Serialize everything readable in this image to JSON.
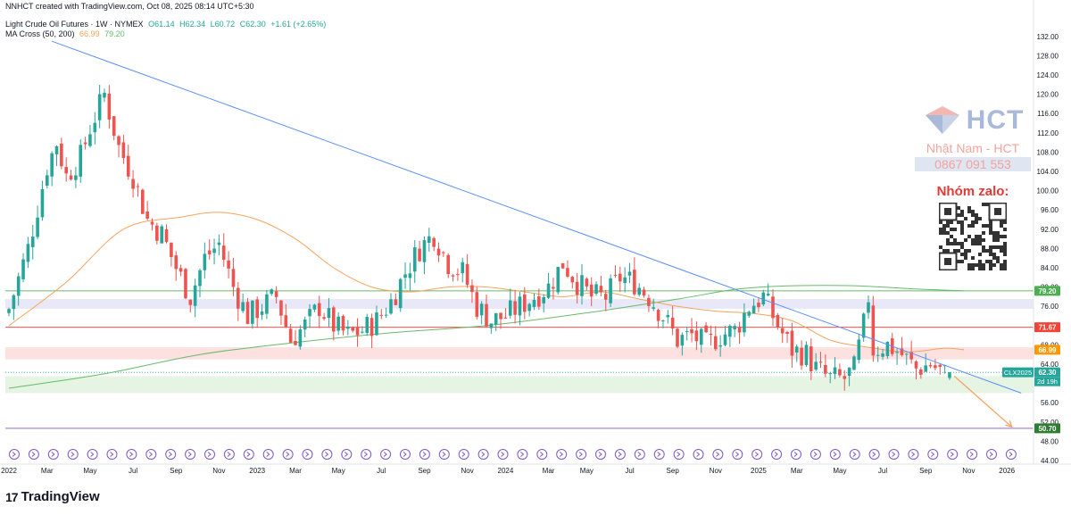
{
  "header": {
    "created": "NNHCT created with TradingView.com, Oct 08, 2025 08:14 UTC+5:30",
    "symbol": "Light Crude Oil Futures · 1W · NYMEX",
    "o": "O61.14",
    "h": "H62.34",
    "l": "L60.72",
    "c": "C62.30",
    "chg": "+1.61 (+2.65%)",
    "ma_label": "MA Cross (50, 200)",
    "ma50": "66.99",
    "ma200": "79.20"
  },
  "watermark": {
    "brand": "HCT",
    "name": "Nhật Nam - HCT",
    "phone": "0867 091 553",
    "group": "Nhóm zalo:"
  },
  "logo": {
    "text": "TradingView"
  },
  "colors": {
    "up": "#26a69a",
    "down": "#ef5350",
    "trend": "#5b8ff9",
    "ma50": "#f7a35c",
    "ma200": "#66bb6a",
    "arrow": "#f7a35c",
    "event": "#7e57c2"
  },
  "chart_data": {
    "type": "candlestick",
    "title": "Light Crude Oil Futures · 1W · NYMEX",
    "ylim": [
      44,
      134
    ],
    "yticks": [
      "132.00",
      "128.00",
      "124.00",
      "120.00",
      "116.00",
      "112.00",
      "108.00",
      "104.00",
      "100.00",
      "96.00",
      "92.00",
      "88.00",
      "84.00",
      "80.00",
      "76.00",
      "72.00",
      "68.00",
      "64.00",
      "60.00",
      "56.00",
      "52.00",
      "48.00",
      "44.00"
    ],
    "xlabels": [
      {
        "label": "2022",
        "t": 0
      },
      {
        "label": "Mar",
        "t": 8
      },
      {
        "label": "May",
        "t": 17
      },
      {
        "label": "Jul",
        "t": 26
      },
      {
        "label": "Sep",
        "t": 35
      },
      {
        "label": "Nov",
        "t": 44
      },
      {
        "label": "2023",
        "t": 52
      },
      {
        "label": "Mar",
        "t": 60
      },
      {
        "label": "May",
        "t": 69
      },
      {
        "label": "Jul",
        "t": 78
      },
      {
        "label": "Sep",
        "t": 87
      },
      {
        "label": "Nov",
        "t": 96
      },
      {
        "label": "2024",
        "t": 104
      },
      {
        "label": "Mar",
        "t": 113
      },
      {
        "label": "May",
        "t": 121
      },
      {
        "label": "Jul",
        "t": 130
      },
      {
        "label": "Sep",
        "t": 139
      },
      {
        "label": "Nov",
        "t": 148
      },
      {
        "label": "2025",
        "t": 157
      },
      {
        "label": "Mar",
        "t": 165
      },
      {
        "label": "May",
        "t": 174
      },
      {
        "label": "Jul",
        "t": 183
      },
      {
        "label": "Sep",
        "t": 192
      },
      {
        "label": "Nov",
        "t": 201
      },
      {
        "label": "2026",
        "t": 209
      }
    ],
    "anchors": [
      [
        0,
        75.5
      ],
      [
        4,
        88
      ],
      [
        8,
        105
      ],
      [
        10,
        110
      ],
      [
        12,
        103
      ],
      [
        15,
        107
      ],
      [
        17,
        113
      ],
      [
        20,
        120
      ],
      [
        23,
        109
      ],
      [
        26,
        103
      ],
      [
        29,
        94
      ],
      [
        32,
        91
      ],
      [
        35,
        84
      ],
      [
        38,
        78
      ],
      [
        41,
        86
      ],
      [
        44,
        89
      ],
      [
        47,
        80
      ],
      [
        50,
        74
      ],
      [
        53,
        76
      ],
      [
        56,
        78
      ],
      [
        59,
        69
      ],
      [
        62,
        72
      ],
      [
        65,
        76
      ],
      [
        68,
        72
      ],
      [
        71,
        70
      ],
      [
        74,
        71
      ],
      [
        77,
        73
      ],
      [
        80,
        77
      ],
      [
        83,
        83
      ],
      [
        86,
        88
      ],
      [
        89,
        91
      ],
      [
        92,
        85
      ],
      [
        95,
        83
      ],
      [
        98,
        76
      ],
      [
        101,
        73
      ],
      [
        104,
        74
      ],
      [
        107,
        76
      ],
      [
        110,
        78
      ],
      [
        113,
        80
      ],
      [
        116,
        85
      ],
      [
        119,
        81
      ],
      [
        122,
        78
      ],
      [
        125,
        78
      ],
      [
        128,
        82
      ],
      [
        131,
        81
      ],
      [
        134,
        78
      ],
      [
        137,
        74
      ],
      [
        140,
        69
      ],
      [
        143,
        70
      ],
      [
        146,
        68
      ],
      [
        149,
        70
      ],
      [
        152,
        71
      ],
      [
        155,
        76
      ],
      [
        158,
        78
      ],
      [
        161,
        72
      ],
      [
        164,
        67
      ],
      [
        167,
        66
      ],
      [
        169,
        63
      ],
      [
        172,
        61
      ],
      [
        175,
        61
      ],
      [
        177,
        63
      ],
      [
        179,
        72
      ],
      [
        180,
        78
      ],
      [
        181,
        67
      ],
      [
        184,
        68
      ],
      [
        187,
        66
      ],
      [
        190,
        63
      ],
      [
        193,
        64
      ],
      [
        196,
        62
      ],
      [
        197,
        62.3
      ]
    ],
    "last_close": 62.3,
    "trendline": [
      {
        "t": 9,
        "v": 131
      },
      {
        "t": 212,
        "v": 58
      }
    ],
    "ma50": [
      [
        0,
        72
      ],
      [
        12,
        81
      ],
      [
        24,
        92
      ],
      [
        36,
        94.5
      ],
      [
        44,
        95.5
      ],
      [
        52,
        94
      ],
      [
        60,
        90
      ],
      [
        68,
        84
      ],
      [
        76,
        80
      ],
      [
        84,
        79
      ],
      [
        92,
        80
      ],
      [
        100,
        80
      ],
      [
        108,
        79
      ],
      [
        116,
        78
      ],
      [
        124,
        79
      ],
      [
        132,
        77.5
      ],
      [
        140,
        76
      ],
      [
        148,
        75
      ],
      [
        156,
        74.5
      ],
      [
        164,
        73
      ],
      [
        172,
        69
      ],
      [
        180,
        67.5
      ],
      [
        188,
        66.5
      ],
      [
        196,
        67.3
      ],
      [
        200,
        66.99
      ]
    ],
    "ma200": [
      [
        0,
        59
      ],
      [
        20,
        62
      ],
      [
        40,
        66
      ],
      [
        60,
        68.5
      ],
      [
        80,
        70.5
      ],
      [
        100,
        72
      ],
      [
        120,
        74.5
      ],
      [
        140,
        77.5
      ],
      [
        152,
        79.5
      ],
      [
        162,
        80.2
      ],
      [
        176,
        80.3
      ],
      [
        190,
        79.6
      ],
      [
        200,
        79.2
      ]
    ],
    "zones": [
      {
        "from": 75.5,
        "to": 77.5,
        "color": "#e8e8f8"
      },
      {
        "from": 65,
        "to": 67.5,
        "color": "#fde0e0"
      },
      {
        "from": 58,
        "to": 61.5,
        "color": "#e6f4e4"
      }
    ],
    "hlines": [
      {
        "value": 71.67,
        "color": "#ef5350"
      },
      {
        "value": 79.2,
        "color": "#66bb6a"
      },
      {
        "value": 50.7,
        "color": "#9c6ad4"
      }
    ],
    "projection": {
      "from": {
        "t": 198,
        "v": 61.5
      },
      "to": {
        "t": 210,
        "v": 51
      }
    },
    "price_tags": [
      {
        "value": 79.2,
        "text": "79.20",
        "bg": "#4caf50"
      },
      {
        "value": 71.67,
        "text": "71.67",
        "bg": "#f44336"
      },
      {
        "value": 66.99,
        "text": "66.99",
        "bg": "#ff9800"
      },
      {
        "value": 62.3,
        "text": "62.30",
        "bg": "#26a69a",
        "symbol": "CLX2025",
        "countdown": "2d 19h"
      },
      {
        "value": 50.7,
        "text": "50.70",
        "bg": "#2e7d32"
      }
    ],
    "event_icons": 52
  }
}
